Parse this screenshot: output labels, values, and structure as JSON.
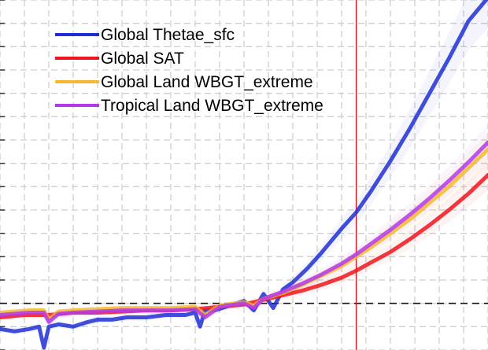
{
  "chart_data": {
    "type": "line",
    "title": "",
    "xlabel": "",
    "ylabel": "",
    "xlim": [
      0,
      100
    ],
    "ylim": [
      -2,
      13
    ],
    "grid": true,
    "legend_placement": "top-left",
    "reference_lines": {
      "horizontal_y": 0,
      "vertical_x": 73
    },
    "colors": {
      "reference_vertical": "#e8141c",
      "reference_horizontal": "#111111",
      "grid": "#cfcfcf"
    },
    "series": [
      {
        "name": "Global Thetae_sfc",
        "color": "#1f2fd4",
        "x": [
          0,
          3,
          6,
          8,
          9,
          10,
          12,
          15,
          18,
          20,
          23,
          26,
          30,
          34,
          38,
          40,
          41,
          42,
          44,
          47,
          50,
          52,
          54,
          56,
          58,
          60,
          63,
          66,
          70,
          73,
          76,
          80,
          84,
          88,
          92,
          96,
          100
        ],
        "y": [
          -1.1,
          -1.2,
          -1.1,
          -1.0,
          -1.9,
          -1.0,
          -0.9,
          -1.0,
          -0.8,
          -0.7,
          -0.7,
          -0.6,
          -0.6,
          -0.5,
          -0.5,
          -0.4,
          -1.0,
          -0.3,
          -0.3,
          -0.1,
          0.1,
          -0.3,
          0.4,
          -0.2,
          0.6,
          0.9,
          1.5,
          2.2,
          3.2,
          3.9,
          4.8,
          6.1,
          7.5,
          9.0,
          10.5,
          12.1,
          13.1
        ]
      },
      {
        "name": "Global SAT",
        "color": "#f0141c",
        "x": [
          0,
          5,
          10,
          15,
          20,
          25,
          30,
          35,
          40,
          45,
          50,
          54,
          58,
          62,
          66,
          70,
          73,
          76,
          80,
          84,
          88,
          92,
          96,
          100
        ],
        "y": [
          -0.6,
          -0.5,
          -0.5,
          -0.4,
          -0.4,
          -0.35,
          -0.3,
          -0.3,
          -0.25,
          -0.15,
          -0.05,
          0.15,
          0.35,
          0.55,
          0.8,
          1.1,
          1.4,
          1.75,
          2.2,
          2.75,
          3.35,
          4.0,
          4.7,
          5.5
        ]
      },
      {
        "name": "Global Land WBGT_extreme",
        "color": "#f5b82e",
        "x": [
          0,
          3,
          6,
          9,
          10,
          12,
          15,
          20,
          25,
          30,
          35,
          40,
          42,
          45,
          50,
          52,
          54,
          58,
          62,
          66,
          70,
          73,
          76,
          80,
          84,
          88,
          92,
          96,
          100
        ],
        "y": [
          -0.4,
          -0.35,
          -0.3,
          -0.3,
          -0.7,
          -0.35,
          -0.3,
          -0.25,
          -0.2,
          -0.2,
          -0.2,
          -0.15,
          -0.5,
          -0.1,
          0.05,
          -0.1,
          0.2,
          0.45,
          0.8,
          1.2,
          1.6,
          2.0,
          2.4,
          3.0,
          3.6,
          4.3,
          5.0,
          5.8,
          6.6
        ]
      },
      {
        "name": "Tropical Land WBGT_extreme",
        "color": "#b538e8",
        "x": [
          0,
          3,
          6,
          9,
          10,
          12,
          15,
          20,
          25,
          30,
          35,
          40,
          42,
          45,
          50,
          52,
          54,
          58,
          62,
          66,
          70,
          73,
          76,
          80,
          84,
          88,
          92,
          96,
          100
        ],
        "y": [
          -0.5,
          -0.45,
          -0.4,
          -0.4,
          -0.8,
          -0.45,
          -0.4,
          -0.35,
          -0.3,
          -0.3,
          -0.3,
          -0.25,
          -0.6,
          -0.15,
          0.0,
          -0.2,
          0.2,
          0.5,
          0.85,
          1.25,
          1.7,
          2.1,
          2.55,
          3.15,
          3.8,
          4.5,
          5.25,
          6.05,
          6.9
        ]
      }
    ]
  }
}
